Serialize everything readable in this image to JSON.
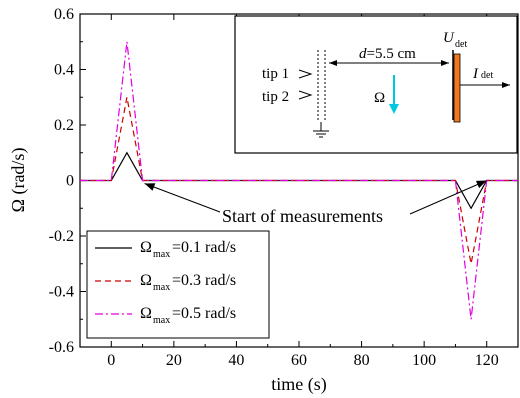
{
  "chart_data": {
    "type": "line",
    "xlabel": "time (s)",
    "ylabel": "Ω (rad/s)",
    "xlim": [
      -10,
      130
    ],
    "ylim": [
      -0.6,
      0.6
    ],
    "xticks": [
      "0",
      "20",
      "40",
      "60",
      "80",
      "100",
      "120"
    ],
    "yticks": [
      "0.6",
      "0.4",
      "0.2",
      "0",
      "-0.2",
      "-0.4",
      "-0.6"
    ],
    "xtick_values": [
      0,
      20,
      40,
      60,
      80,
      100,
      120
    ],
    "ytick_values": [
      0.6,
      0.4,
      0.2,
      0,
      -0.2,
      -0.4,
      -0.6
    ],
    "legend_position": "bottom-left",
    "series": [
      {
        "name": "Ω_max=0.1 rad/s",
        "color": "#000000",
        "style": "solid",
        "x": [
          -10,
          0,
          5,
          10,
          110,
          115,
          120,
          130
        ],
        "y": [
          0,
          0,
          0.1,
          0,
          0,
          -0.1,
          0,
          0
        ]
      },
      {
        "name": "Ω_max=0.3 rad/s",
        "color": "#cc0000",
        "style": "dashed",
        "x": [
          -10,
          0,
          5,
          10,
          110,
          115,
          120,
          130
        ],
        "y": [
          0,
          0,
          0.3,
          0,
          0,
          -0.3,
          0,
          0
        ]
      },
      {
        "name": "Ω_max=0.5 rad/s",
        "color": "#e000e0",
        "style": "dashdot",
        "x": [
          -10,
          0,
          5,
          10,
          110,
          115,
          120,
          130
        ],
        "y": [
          0,
          0,
          0.5,
          0,
          0,
          -0.5,
          0,
          0
        ]
      }
    ],
    "legend": [
      {
        "main": "Ω",
        "sub": "max",
        "rest": "=0.1 rad/s"
      },
      {
        "main": "Ω",
        "sub": "max",
        "rest": "=0.3 rad/s"
      },
      {
        "main": "Ω",
        "sub": "max",
        "rest": "=0.5 rad/s"
      }
    ],
    "annotation": {
      "text": "Start of measurements",
      "targets": [
        [
          10,
          0
        ],
        [
          120,
          0
        ]
      ]
    },
    "inset": {
      "tip1": "tip 1",
      "tip2": "tip 2",
      "distance": "d=5.5 cm",
      "distance_var": "d",
      "distance_val": "=5.5 cm",
      "omega": "Ω",
      "u_main": "U",
      "u_sub": "det",
      "i_main": "I",
      "i_sub": "det",
      "omega_arrow_color": "#00c8e0",
      "detector_color": "#f07820"
    }
  }
}
